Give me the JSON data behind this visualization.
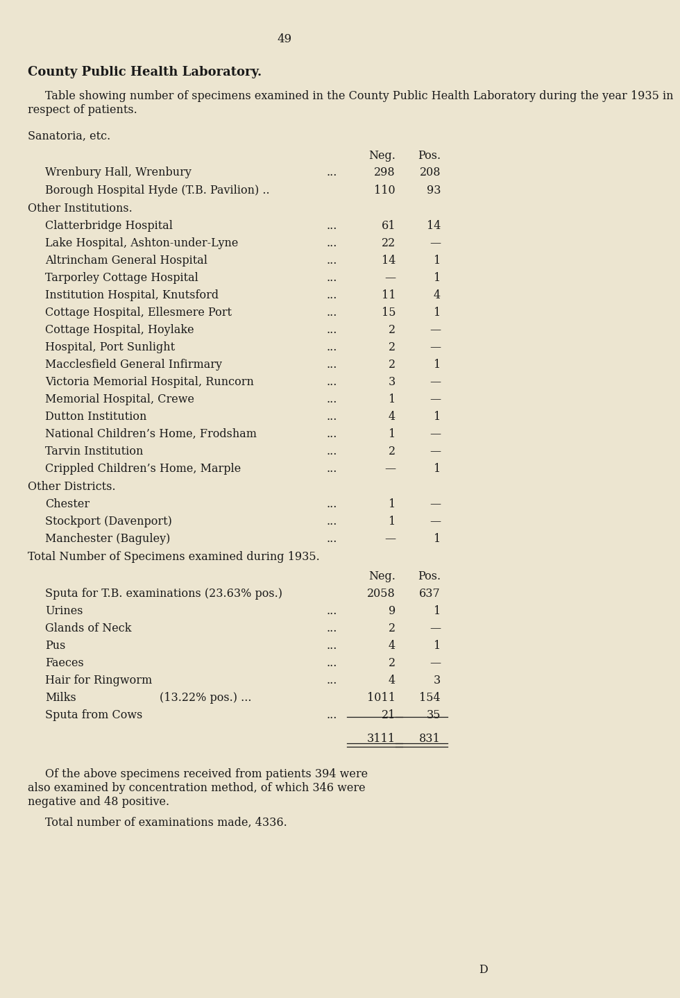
{
  "bg_color": "#ece5d0",
  "text_color": "#1a1a1a",
  "page_number": "49",
  "title": "County Public Health Laboratory.",
  "intro_lines": [
    "Table showing number of specimens examined in the County Public Health Laboratory during the year 1935 in",
    "respect of patients."
  ],
  "sanatoria_header": "Sanatoria, etc.",
  "neg_label": "Neg.",
  "pos_label": "Pos.",
  "sanatoria_rows": [
    {
      "label": "Wrenbury Hall, Wrenbury",
      "dots": "...",
      "neg": "298",
      "pos": "208"
    },
    {
      "label": "Borough Hospital Hyde (T.B. Pavilion) ..",
      "dots": "",
      "neg": "110",
      "pos": "93"
    }
  ],
  "other_inst_header": "Other Institutions.",
  "other_inst_rows": [
    {
      "label": "Clatterbridge Hospital",
      "dots": "...",
      "neg": "61",
      "pos": "14"
    },
    {
      "label": "Lake Hospital, Ashton-under-Lyne",
      "dots": "...",
      "neg": "22",
      "pos": "—"
    },
    {
      "label": "Altrincham General Hospital",
      "dots": "...",
      "neg": "14",
      "pos": "1"
    },
    {
      "label": "Tarporley Cottage Hospital",
      "dots": "...",
      "neg": "—",
      "pos": "1"
    },
    {
      "label": "Institution Hospital, Knutsford",
      "dots": "...",
      "neg": "11",
      "pos": "4"
    },
    {
      "label": "Cottage Hospital, Ellesmere Port",
      "dots": "...",
      "neg": "15",
      "pos": "1"
    },
    {
      "label": "Cottage Hospital, Hoylake",
      "dots": "...",
      "neg": "2",
      "pos": "—"
    },
    {
      "label": "Hospital, Port Sunlight",
      "dots": "...",
      "neg": "2",
      "pos": "—"
    },
    {
      "label": "Macclesfield General Infirmary",
      "dots": "...",
      "neg": "2",
      "pos": "1"
    },
    {
      "label": "Victoria Memorial Hospital, Runcorn",
      "dots": "...",
      "neg": "3",
      "pos": "—"
    },
    {
      "label": "Memorial Hospital, Crewe",
      "dots": "...",
      "neg": "1",
      "pos": "—"
    },
    {
      "label": "Dutton Institution",
      "dots": "...",
      "neg": "4",
      "pos": "1"
    },
    {
      "label": "National Children’s Home, Frodsham",
      "dots": "...",
      "neg": "1",
      "pos": "—"
    },
    {
      "label": "Tarvin Institution",
      "dots": "...",
      "neg": "2",
      "pos": "—"
    },
    {
      "label": "Crippled Children’s Home, Marple",
      "dots": "...",
      "neg": "—",
      "pos": "1"
    }
  ],
  "other_dist_header": "Other Districts.",
  "other_dist_rows": [
    {
      "label": "Chester",
      "dots": "...",
      "neg": "1",
      "pos": "—"
    },
    {
      "label": "Stockport (Davenport)",
      "dots": "...",
      "neg": "1",
      "pos": "—"
    },
    {
      "label": "Manchester (Baguley)",
      "dots": "...",
      "neg": "—",
      "pos": "1"
    }
  ],
  "totals_header": "Total Number of Specimens examined during 1935.",
  "totals_rows": [
    {
      "label": "Sputa for T.B. examinations (23.63% pos.)",
      "dots": "",
      "neg": "2058",
      "pos": "637"
    },
    {
      "label": "Urines",
      "dots": "...",
      "neg": "9",
      "pos": "1"
    },
    {
      "label": "Glands of Neck",
      "dots": "...",
      "neg": "2",
      "pos": "—"
    },
    {
      "label": "Pus",
      "dots": "...",
      "neg": "4",
      "pos": "1"
    },
    {
      "label": "Faeces",
      "dots": "...",
      "neg": "2",
      "pos": "—"
    },
    {
      "label": "Hair for Ringworm",
      "dots": "...",
      "neg": "4",
      "pos": "3"
    },
    {
      "label": "Milks",
      "dots_prefix": "(13.22% pos.) ...",
      "neg": "1011",
      "pos": "154"
    },
    {
      "label": "Sputa from Cows",
      "dots": "...",
      "neg": "21",
      "pos": "35"
    }
  ],
  "total_neg": "3111",
  "total_pos": "831",
  "footnote1_lines": [
    "Of the above specimens received from patients 394 were",
    "also examined by concentration method, of which 346 were",
    "negative and 48 positive."
  ],
  "footnote2": "Total number of examinations made, 4336.",
  "footer_letter": "D"
}
